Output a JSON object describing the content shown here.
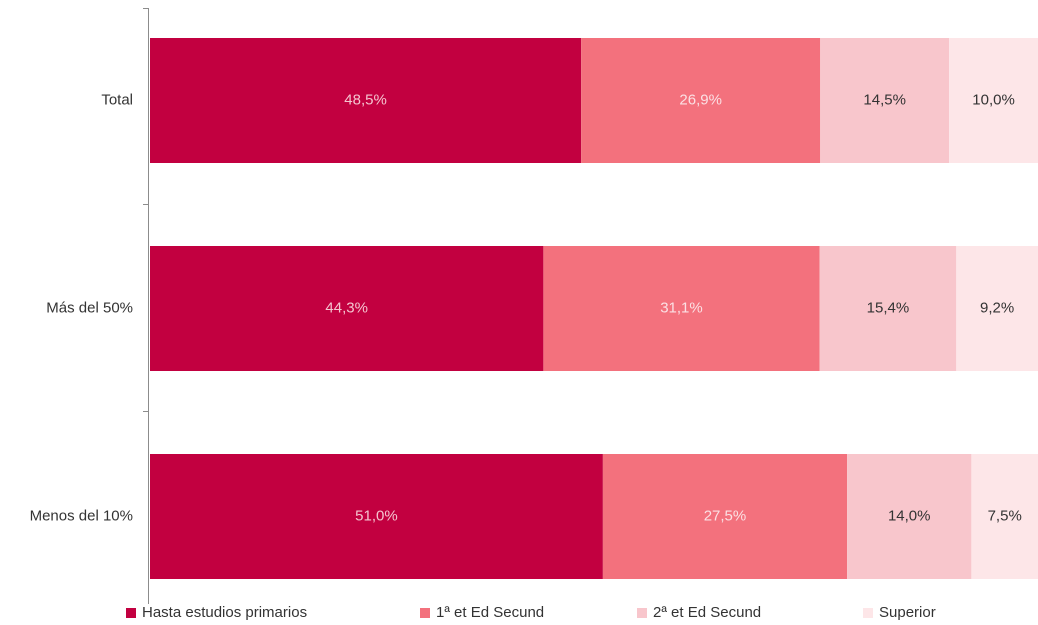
{
  "chart_data": {
    "type": "bar",
    "orientation": "horizontal",
    "stacked": "percent",
    "title": "",
    "xlabel": "",
    "ylabel": "",
    "xlim": [
      0,
      100
    ],
    "grid": false,
    "legend_position": "bottom",
    "categories": [
      "Total",
      "Más del 50%",
      "Menos del 10%"
    ],
    "series": [
      {
        "name": "Hasta estudios primarios",
        "color": "#c20040",
        "label_color": "#f4c4cf",
        "values": [
          48.5,
          44.3,
          51.0
        ],
        "labels": [
          "48,5%",
          "44,3%",
          "51,0%"
        ]
      },
      {
        "name": "1ª et Ed Secund",
        "color": "#f3717d",
        "label_color": "#fbe0e4",
        "values": [
          26.9,
          31.1,
          27.5
        ],
        "labels": [
          "26,9%",
          "31,1%",
          "27,5%"
        ]
      },
      {
        "name": "2ª et Ed Secund",
        "color": "#f8c6cc",
        "label_color": "#333333",
        "values": [
          14.5,
          15.4,
          14.0
        ],
        "labels": [
          "14,5%",
          "15,4%",
          "14,0%"
        ]
      },
      {
        "name": "Superior",
        "color": "#fde6e8",
        "label_color": "#333333",
        "values": [
          10.0,
          9.2,
          7.5
        ],
        "labels": [
          "10,0%",
          "9,2%",
          "7,5%"
        ]
      }
    ]
  }
}
